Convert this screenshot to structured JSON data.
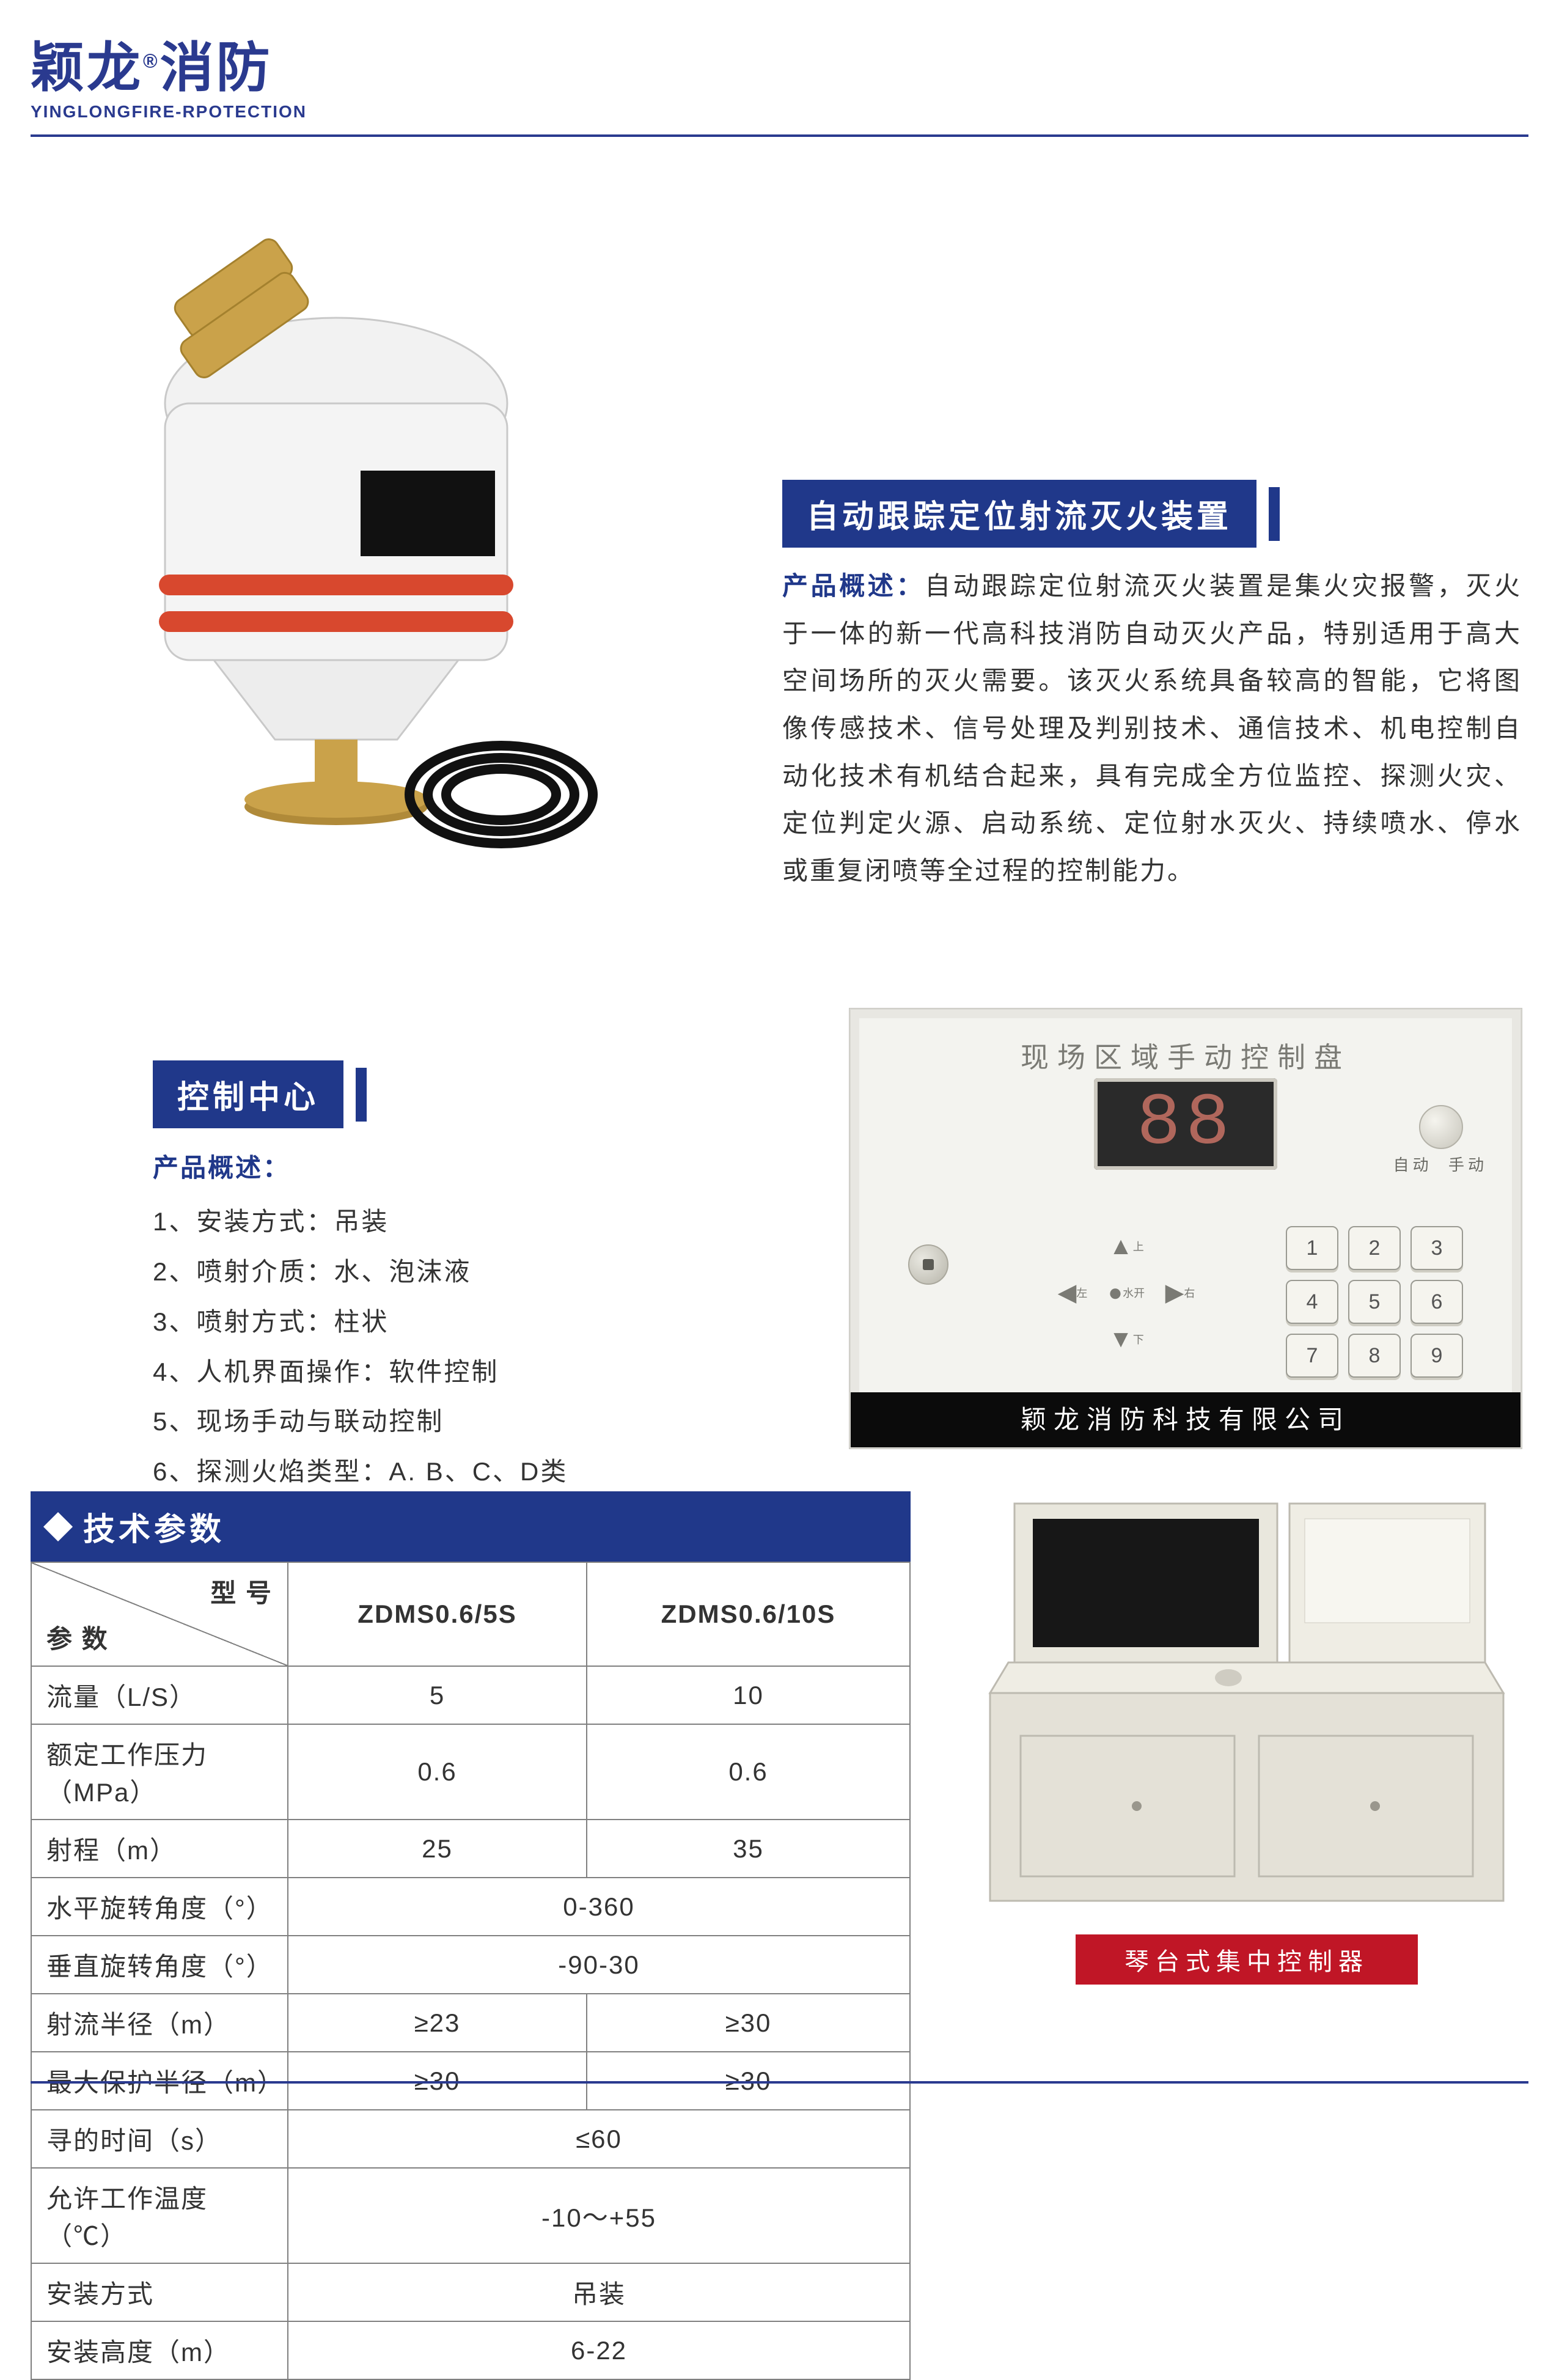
{
  "brand": {
    "cn1": "颖龙",
    "reg": "®",
    "cn2": "消防",
    "en": "YINGLONGFIRE-RPOTECTION"
  },
  "section1": {
    "title": "自动跟踪定位射流灭火装置",
    "lead": "产品概述：",
    "body": "自动跟踪定位射流灭火装置是集火灾报警，灭火于一体的新一代高科技消防自动灭火产品，特别适用于高大空间场所的灭火需要。该灭火系统具备较高的智能，它将图像传感技术、信号处理及判别技术、通信技术、机电控制自动化技术有机结合起来，具有完成全方位监控、探测火灾、定位判定火源、启动系统、定位射水灭火、持续喷水、停水或重复闭喷等全过程的控制能力。"
  },
  "section2": {
    "title": "控制中心",
    "lead": "产品概述：",
    "items": [
      "1、安装方式：吊装",
      "2、喷射介质：水、泡沫液",
      "3、喷射方式：柱状",
      "4、人机界面操作：软件控制",
      "5、现场手动与联动控制",
      "6、探测火焰类型：A. B、C、D类"
    ]
  },
  "panel": {
    "topLabel": "现场区域手动控制盘",
    "display": "88",
    "modeAuto": "自动",
    "modeManual": "手动",
    "keypad": [
      "1",
      "2",
      "3",
      "4",
      "5",
      "6",
      "7",
      "8",
      "9"
    ],
    "capUp": "上",
    "capDown": "下",
    "capLeft": "左",
    "capRight": "右",
    "capWater": "水开",
    "company": "颖龙消防科技有限公司"
  },
  "spec": {
    "header": "技术参数",
    "colModel": "型 号",
    "colParam": "参 数",
    "models": [
      "ZDMS0.6/5S",
      "ZDMS0.6/10S"
    ],
    "rows": [
      {
        "label": "流量（L/S）",
        "v": [
          "5",
          "10"
        ]
      },
      {
        "label": "额定工作压力（MPa）",
        "v": [
          "0.6",
          "0.6"
        ]
      },
      {
        "label": "射程（m）",
        "v": [
          "25",
          "35"
        ]
      },
      {
        "label": "水平旋转角度（°）",
        "span": "0-360"
      },
      {
        "label": "垂直旋转角度（°）",
        "span": "-90-30"
      },
      {
        "label": "射流半径（m）",
        "v": [
          "≥23",
          "≥30"
        ]
      },
      {
        "label": "最大保护半径（m）",
        "v": [
          "≥30",
          "≥30"
        ]
      },
      {
        "label": "寻的时间（s）",
        "span": "≤60"
      },
      {
        "label": "允许工作温度（℃）",
        "span": "-10～+55"
      },
      {
        "label": "安装方式",
        "span": "吊装"
      },
      {
        "label": "安装高度（m）",
        "span": "6-22"
      }
    ]
  },
  "console": {
    "caption": "琴台式集中控制器"
  },
  "colors": {
    "brandBlue": "#2a3a8f",
    "barBlue": "#20388a",
    "red": "#c01626",
    "gold": "#caa24a",
    "deviceBody": "#f2f2f2",
    "ringRed": "#d8482e"
  }
}
